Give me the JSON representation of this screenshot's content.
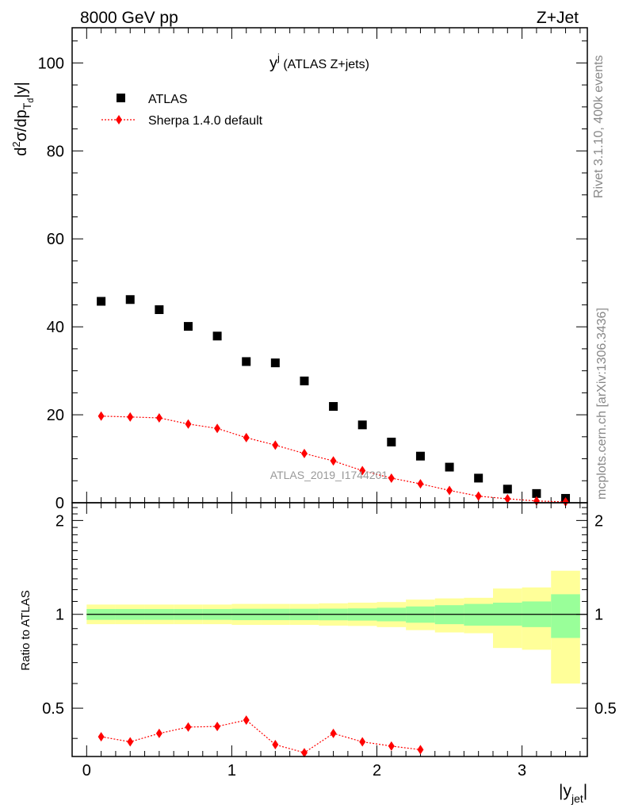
{
  "header": {
    "beam": "8000 GeV pp",
    "process": "Z+Jet"
  },
  "side_labels": {
    "rivet": "Rivet 3.1.10,  400k events",
    "mcplots": "mcplots.cern.ch [arXiv:1306.3436]"
  },
  "chart_data": {
    "type": "scatter",
    "title_main": "y",
    "title_sup": "j",
    "title_rest": " (ATLAS Z+jets)",
    "watermark": "ATLAS_2019_I1744201",
    "xlabel": "|y",
    "xlabel_sub": "jet",
    "xlabel_end": "|",
    "ylabel_parts": {
      "d": "d",
      "two": "2",
      "sigma": "σ/dp",
      "T": "T",
      "d_sub": "d",
      "abs": "|y|"
    },
    "ratio_ylabel": "Ratio to ATLAS",
    "xlim": [
      -0.1,
      3.45
    ],
    "ylim": [
      0,
      108
    ],
    "ratio_ylim": [
      0.35,
      2.28
    ],
    "x_ticks": [
      0,
      1,
      2,
      3
    ],
    "x_tick_labels": [
      "0",
      "1",
      "2",
      "3"
    ],
    "y_ticks": [
      0,
      20,
      40,
      60,
      80,
      100
    ],
    "y_tick_labels": [
      "0",
      "20",
      "40",
      "60",
      "80",
      "100"
    ],
    "ratio_ticks": [
      0.5,
      1,
      2
    ],
    "ratio_tick_labels": [
      "0.5",
      "1",
      "2"
    ],
    "bin_edges": [
      0,
      0.2,
      0.4,
      0.6,
      0.8,
      1.0,
      1.2,
      1.4,
      1.6,
      1.8,
      2.0,
      2.2,
      2.4,
      2.6,
      2.8,
      3.0,
      3.2,
      3.4
    ],
    "x": [
      0.1,
      0.3,
      0.5,
      0.7,
      0.9,
      1.1,
      1.3,
      1.5,
      1.7,
      1.9,
      2.1,
      2.3,
      2.5,
      2.7,
      2.9,
      3.1,
      3.3
    ],
    "series": [
      {
        "name": "ATLAS",
        "marker": "square",
        "color": "#000000",
        "values": [
          45.8,
          46.2,
          43.9,
          40.1,
          37.9,
          32.1,
          31.8,
          27.7,
          21.9,
          17.7,
          13.8,
          10.6,
          8.1,
          5.6,
          3.1,
          2.1,
          1.0
        ]
      },
      {
        "name": "Sherpa 1.4.0 default",
        "marker": "diamond",
        "color": "#ff0000",
        "values": [
          19.7,
          19.5,
          19.3,
          17.9,
          16.9,
          14.8,
          13.1,
          11.2,
          9.5,
          7.3,
          5.6,
          4.3,
          2.8,
          1.5,
          0.9,
          0.4,
          0.2
        ]
      }
    ],
    "ratio_sherpa": [
      0.405,
      0.39,
      0.415,
      0.435,
      0.437,
      0.458,
      0.382,
      0.36,
      0.415,
      0.39,
      0.378,
      0.368
    ],
    "ratio_band_inner": [
      [
        0.96,
        1.04
      ],
      [
        0.96,
        1.04
      ],
      [
        0.96,
        1.04
      ],
      [
        0.96,
        1.04
      ],
      [
        0.96,
        1.04
      ],
      [
        0.958,
        1.042
      ],
      [
        0.958,
        1.042
      ],
      [
        0.958,
        1.042
      ],
      [
        0.957,
        1.043
      ],
      [
        0.955,
        1.045
      ],
      [
        0.95,
        1.05
      ],
      [
        0.94,
        1.06
      ],
      [
        0.93,
        1.07
      ],
      [
        0.92,
        1.08
      ],
      [
        0.92,
        1.09
      ],
      [
        0.91,
        1.1
      ],
      [
        0.84,
        1.16
      ]
    ],
    "ratio_band_outer": [
      [
        0.93,
        1.075
      ],
      [
        0.93,
        1.075
      ],
      [
        0.93,
        1.075
      ],
      [
        0.93,
        1.075
      ],
      [
        0.93,
        1.075
      ],
      [
        0.925,
        1.08
      ],
      [
        0.925,
        1.08
      ],
      [
        0.925,
        1.08
      ],
      [
        0.92,
        1.085
      ],
      [
        0.918,
        1.09
      ],
      [
        0.91,
        1.095
      ],
      [
        0.89,
        1.115
      ],
      [
        0.875,
        1.125
      ],
      [
        0.87,
        1.13
      ],
      [
        0.78,
        1.21
      ],
      [
        0.77,
        1.22
      ],
      [
        0.6,
        1.38
      ]
    ],
    "legend_position": "top-left"
  },
  "colors": {
    "outer_band": "#ffff99",
    "inner_band": "#99ff99",
    "watermark": "#999999",
    "side_text": "#888888"
  }
}
